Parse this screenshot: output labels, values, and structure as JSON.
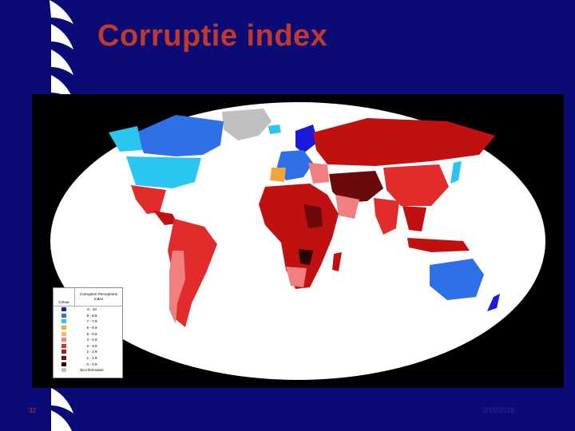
{
  "slide": {
    "title": "Corruptie index",
    "page_number": "32",
    "date": "3/15/2018",
    "background_color": "#0b0b78",
    "title_color": "#c0392b"
  },
  "map": {
    "subject": "world corruption perceptions",
    "background": "#000000",
    "ocean_color": "#ffffff",
    "no_data_color": "#c0c0c0"
  },
  "legend": {
    "header_colour": "Colour",
    "header_index": "Corruption Perceptions Index",
    "rows": [
      {
        "label": "9 - 10",
        "color": "#1a1adb"
      },
      {
        "label": "8 - 8.9",
        "color": "#2f6fe8"
      },
      {
        "label": "7 - 7.9",
        "color": "#29c6f0"
      },
      {
        "label": "6 - 6.9",
        "color": "#f4a43a"
      },
      {
        "label": "5 - 5.9",
        "color": "#f6b86a"
      },
      {
        "label": "4 - 4.9",
        "color": "#f08080"
      },
      {
        "label": "3 - 3.9",
        "color": "#e22b2b"
      },
      {
        "label": "2 - 2.9",
        "color": "#c01010"
      },
      {
        "label": "1 - 1.9",
        "color": "#6a0a0a"
      },
      {
        "label": "0 - 0.9",
        "color": "#2a0505"
      },
      {
        "label": "No information",
        "color": "#c0c0c0"
      }
    ]
  }
}
